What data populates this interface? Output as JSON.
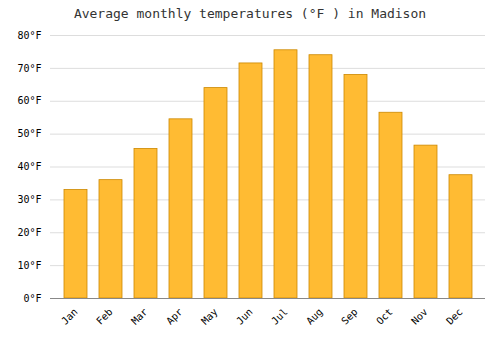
{
  "chart_data": {
    "type": "bar",
    "title": "Average monthly temperatures (°F ) in Madison",
    "categories": [
      "Jan",
      "Feb",
      "Mar",
      "Apr",
      "May",
      "Jun",
      "Jul",
      "Aug",
      "Sep",
      "Oct",
      "Nov",
      "Dec"
    ],
    "values": [
      33,
      36,
      45.5,
      54.5,
      64,
      71.5,
      75.5,
      74,
      68,
      56.5,
      46.5,
      37.5
    ],
    "color": "#FFBB33",
    "ylim": [
      0,
      80
    ],
    "yticks": [
      {
        "value": 0,
        "label": "0°F"
      },
      {
        "value": 10,
        "label": "10°F"
      },
      {
        "value": 20,
        "label": "20°F"
      },
      {
        "value": 30,
        "label": "30°F"
      },
      {
        "value": 40,
        "label": "40°F"
      },
      {
        "value": 50,
        "label": "50°F"
      },
      {
        "value": 60,
        "label": "60°F"
      },
      {
        "value": 70,
        "label": "70°F"
      },
      {
        "value": 80,
        "label": "80°F"
      }
    ],
    "grid": true
  }
}
